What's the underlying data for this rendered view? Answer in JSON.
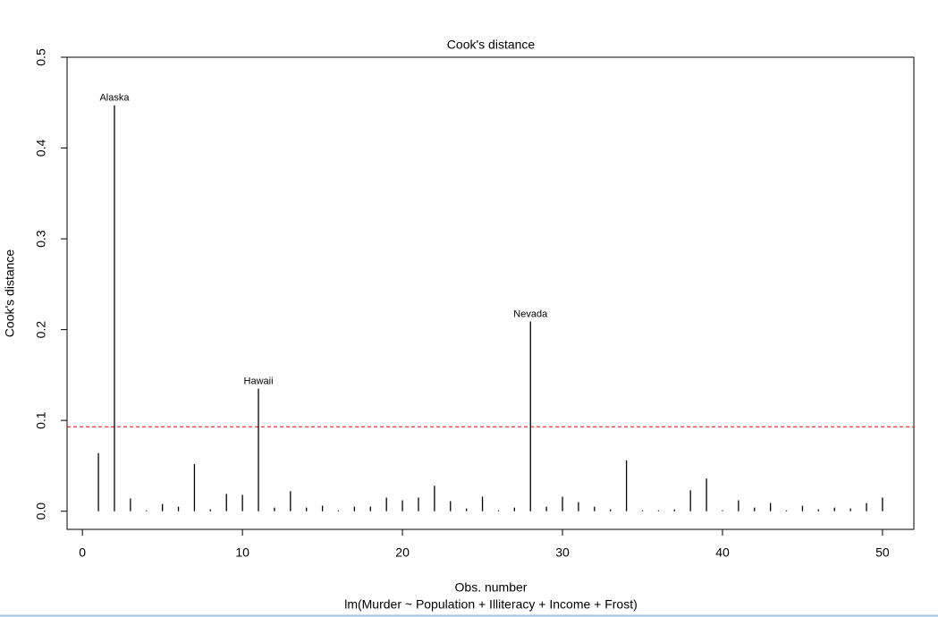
{
  "chart_data": {
    "type": "stem",
    "title": "Cook's distance",
    "xlabel": "Obs. number",
    "ylabel": "Cook's distance",
    "subtitle": "lm(Murder ~ Population + Illiteracy + Income + Frost)",
    "x": [
      1,
      2,
      3,
      4,
      5,
      6,
      7,
      8,
      9,
      10,
      11,
      12,
      13,
      14,
      15,
      16,
      17,
      18,
      19,
      20,
      21,
      22,
      23,
      24,
      25,
      26,
      27,
      28,
      29,
      30,
      31,
      32,
      33,
      34,
      35,
      36,
      37,
      38,
      39,
      40,
      41,
      42,
      43,
      44,
      45,
      46,
      47,
      48,
      49,
      50
    ],
    "series": [
      {
        "color": "#000000",
        "values": [
          0.064,
          0.447,
          0.014,
          0.001,
          0.008,
          0.005,
          0.052,
          0.002,
          0.019,
          0.018,
          0.135,
          0.004,
          0.022,
          0.004,
          0.006,
          0.001,
          0.005,
          0.005,
          0.015,
          0.012,
          0.015,
          0.028,
          0.011,
          0.003,
          0.016,
          0.001,
          0.004,
          0.209,
          0.005,
          0.016,
          0.01,
          0.005,
          0.002,
          0.056,
          0.001,
          0.001,
          0.002,
          0.023,
          0.036,
          0.001,
          0.012,
          0.004,
          0.009,
          0.001,
          0.006,
          0.002,
          0.004,
          0.003,
          0.009,
          0.015
        ]
      }
    ],
    "annotations": [
      {
        "x": 2,
        "label": "Alaska"
      },
      {
        "x": 11,
        "label": "Hawaii"
      },
      {
        "x": 28,
        "label": "Nevada"
      }
    ],
    "threshold": 0.093,
    "threshold_color": "#ff0000",
    "xlim": [
      -0.96,
      51.96
    ],
    "ylim": [
      -0.02,
      0.5
    ],
    "xticks": [
      0,
      10,
      20,
      30,
      40,
      50
    ],
    "yticks": [
      {
        "value": 0,
        "label": "0.0"
      },
      0.1,
      0.2,
      0.3,
      0.4,
      0.5
    ]
  }
}
